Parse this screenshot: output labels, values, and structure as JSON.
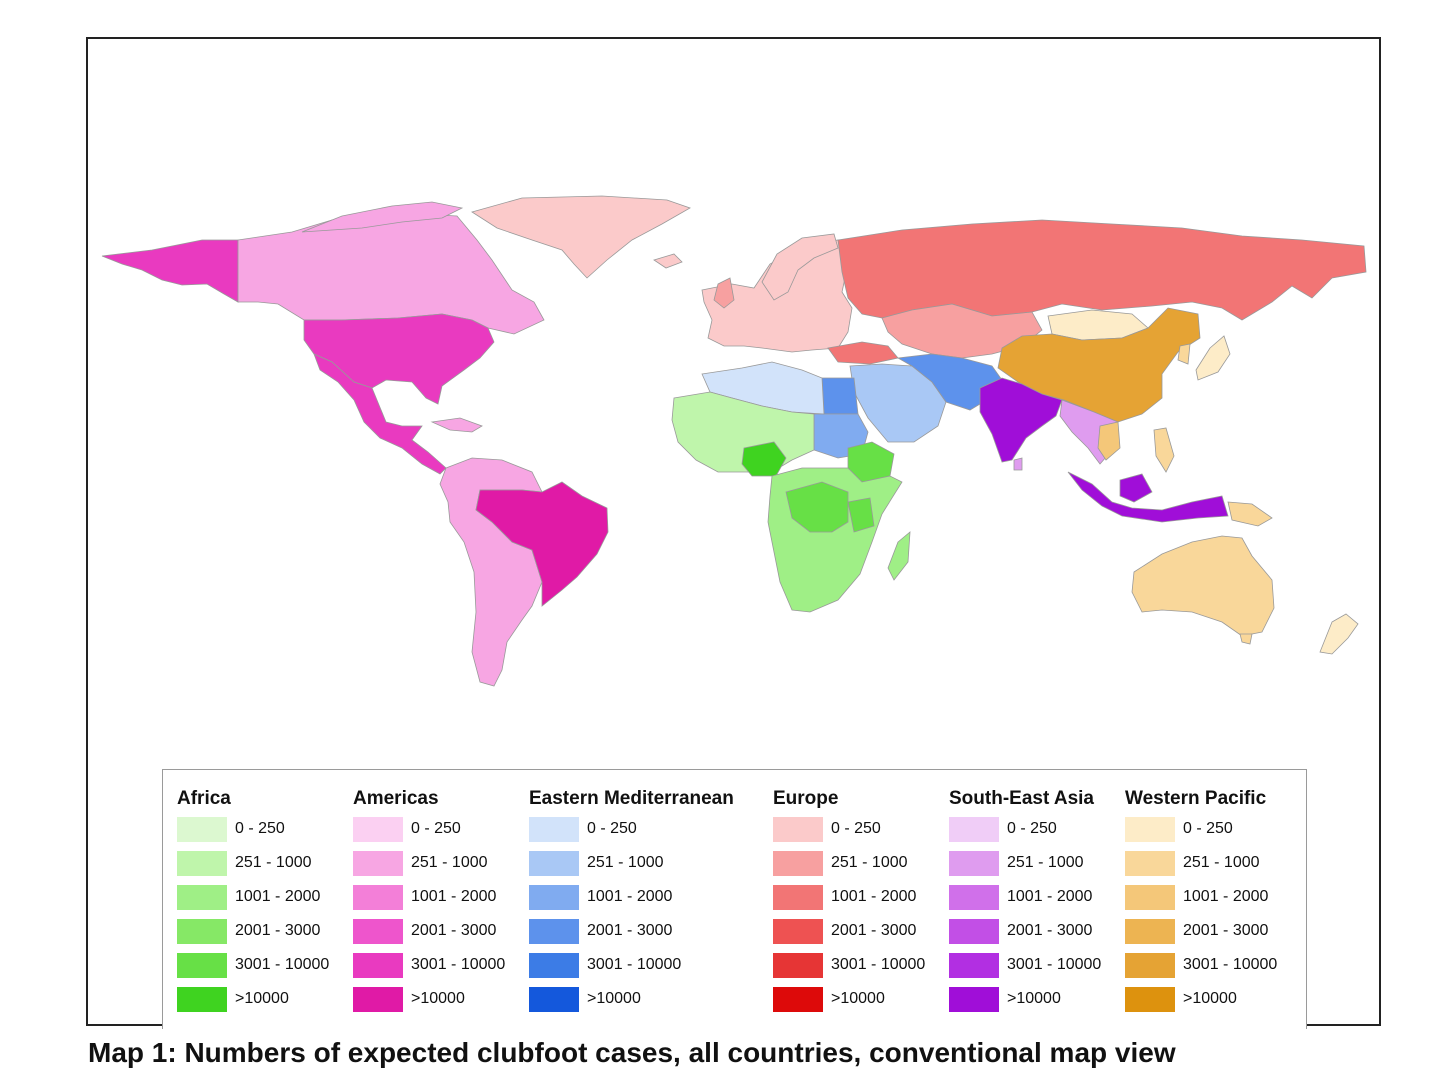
{
  "caption": "Map 1: Numbers of expected clubfoot cases, all countries, conventional map view",
  "legend": {
    "groups": [
      {
        "title": "Africa",
        "labels": [
          "0 - 250",
          "251 - 1000",
          "1001 - 2000",
          "2001 - 3000",
          "3001 - 10000",
          ">10000"
        ],
        "colors": [
          "#dcf8d0",
          "#bff5ab",
          "#9fef86",
          "#86e866",
          "#67e046",
          "#3fd320"
        ]
      },
      {
        "title": "Americas",
        "labels": [
          "0 - 250",
          "251 - 1000",
          "1001 - 2000",
          "2001 - 3000",
          "3001 - 10000",
          ">10000"
        ],
        "colors": [
          "#fbd0f2",
          "#f7a6e3",
          "#f37fd8",
          "#ee55cc",
          "#e93ac0",
          "#e01aa6"
        ]
      },
      {
        "title": "Eastern Mediterranean",
        "labels": [
          "0 - 250",
          "251 - 1000",
          "1001 - 2000",
          "2001 - 3000",
          "3001 - 10000",
          ">10000"
        ],
        "colors": [
          "#d2e3fa",
          "#a9c8f5",
          "#80abf0",
          "#5d92ec",
          "#3c7ce6",
          "#1458dc"
        ]
      },
      {
        "title": "Europe",
        "labels": [
          "0 - 250",
          "251 - 1000",
          "1001 - 2000",
          "2001 - 3000",
          "3001 - 10000",
          ">10000"
        ],
        "colors": [
          "#fbcaca",
          "#f7a0a0",
          "#f27575",
          "#ee5252",
          "#e63535",
          "#dd0a0a"
        ]
      },
      {
        "title": "South-East Asia",
        "labels": [
          "0 - 250",
          "251 - 1000",
          "1001 - 2000",
          "2001 - 3000",
          "3001 - 10000",
          ">10000"
        ],
        "colors": [
          "#f0cdf7",
          "#df9cef",
          "#d070ea",
          "#c24fe6",
          "#b22fe2",
          "#a00ed8"
        ]
      },
      {
        "title": "Western Pacific",
        "labels": [
          "0 - 250",
          "251 - 1000",
          "1001 - 2000",
          "2001 - 3000",
          "3001 - 10000",
          ">10000"
        ],
        "colors": [
          "#fdecc8",
          "#f9d79a",
          "#f4c779",
          "#edb452",
          "#e5a334",
          "#dd920e"
        ]
      }
    ]
  },
  "map_regions": [
    {
      "region": "Americas",
      "color": "#e93ac0"
    },
    {
      "region": "Africa",
      "color": "#9fef86"
    },
    {
      "region": "Europe",
      "color": "#f27575"
    },
    {
      "region": "Eastern Mediterranean",
      "color": "#80abf0"
    },
    {
      "region": "South-East Asia",
      "color": "#a00ed8"
    },
    {
      "region": "Western Pacific",
      "color": "#e5a334"
    }
  ]
}
